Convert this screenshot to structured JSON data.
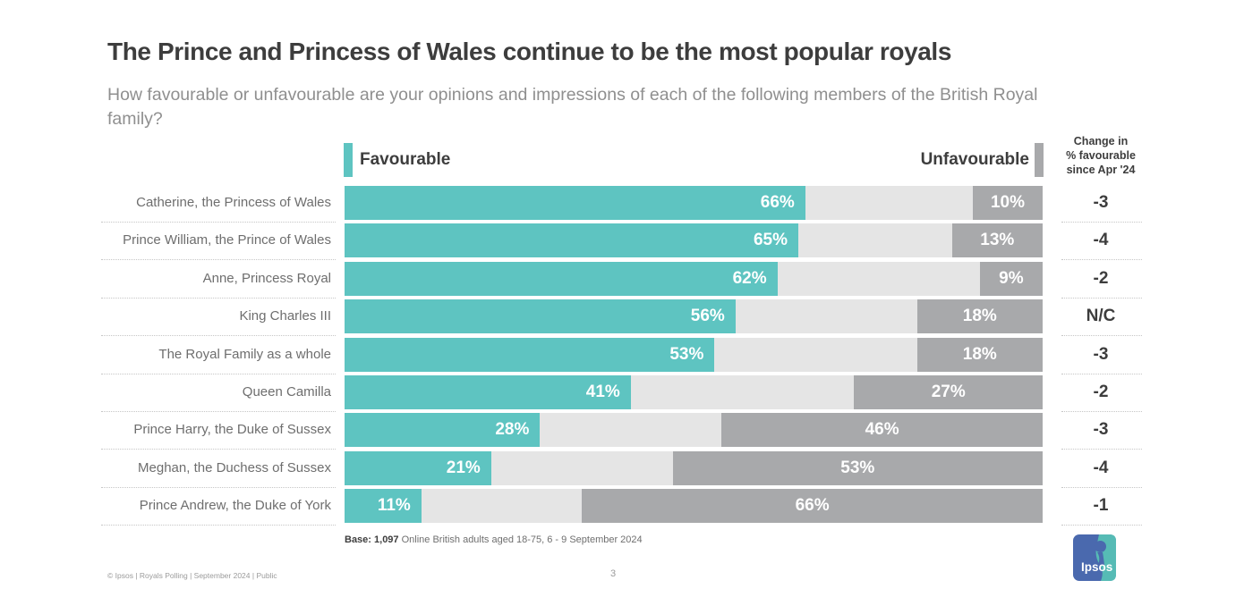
{
  "title": "The Prince and Princess of Wales continue to be the most popular royals",
  "subtitle": "How favourable or unfavourable are your opinions and impressions of each of the following members of the British Royal family?",
  "legend": {
    "favourable_label": "Favourable",
    "unfavourable_label": "Unfavourable"
  },
  "change_header": {
    "line1": "Change in",
    "line2": "% favourable",
    "line3": "since Apr '24"
  },
  "chart_data": {
    "type": "bar",
    "orientation": "horizontal",
    "xlim": [
      0,
      100
    ],
    "grid": false,
    "categories": [
      "Catherine, the Princess of Wales",
      "Prince William, the Prince of Wales",
      "Anne, Princess Royal",
      "King Charles III",
      "The Royal Family as a whole",
      "Queen Camilla",
      "Prince Harry, the Duke of Sussex",
      "Meghan, the Duchess of Sussex",
      "Prince Andrew, the Duke of York"
    ],
    "series": [
      {
        "name": "Favourable",
        "values": [
          66,
          65,
          62,
          56,
          53,
          41,
          28,
          21,
          11
        ],
        "color": "#5ec4c1"
      },
      {
        "name": "Unfavourable",
        "values": [
          10,
          13,
          9,
          18,
          18,
          27,
          46,
          53,
          66
        ],
        "color": "#a8a9ab"
      }
    ],
    "change_since_apr24": [
      "-3",
      "-4",
      "-2",
      "N/C",
      "-3",
      "-2",
      "-3",
      "-4",
      "-1"
    ],
    "value_suffix": "%"
  },
  "colors": {
    "favourable": "#5ec4c1",
    "unfavourable": "#a8a9ab",
    "track": "#e5e5e5",
    "title_text": "#3d3d3d",
    "subtitle_text": "#8f8f8f",
    "logo_blue": "#4a69ae",
    "logo_teal": "#56bbb5"
  },
  "base_note": {
    "bold": "Base: 1,097",
    "rest": " Online British adults aged 18-75, 6 - 9 September 2024"
  },
  "footer": {
    "copyright": "© Ipsos | Royals Polling | September 2024 | Public",
    "page_number": "3",
    "logo_text": "Ipsos"
  }
}
